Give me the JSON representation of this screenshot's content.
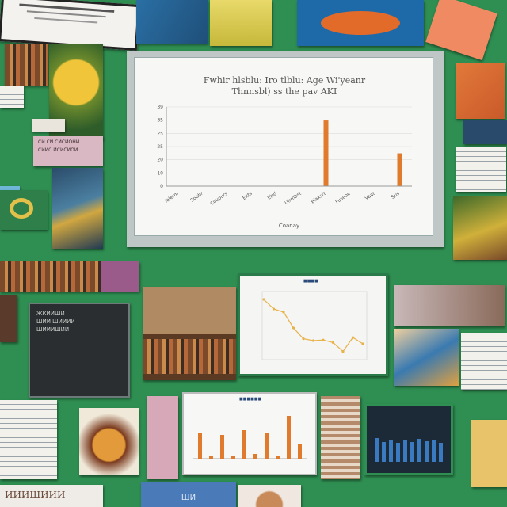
{
  "colors": {
    "background": "#2f8f52",
    "bar": "#e07a2c",
    "board_frame": "#bfc7c6",
    "screen": "#f7f7f5"
  },
  "main_chart": {
    "title_line1": "Fwhir hlsblu: Iro tlblu: Age Wi'yeanr",
    "title_line2": "Thnnsbl) ss the pav AKI",
    "xlabel": "Coanay",
    "y_ticks": [
      "39",
      "35",
      "25",
      "25",
      "20",
      "10",
      "0"
    ],
    "categories": [
      "Iolerm",
      "Soubr",
      "Coupurs",
      "Exts",
      "Elsd",
      "Uirmbst",
      "Blaxsrt",
      "Fuseoe",
      "Vaat",
      "Sris"
    ]
  },
  "chart_data": {
    "type": "bar",
    "categories": [
      "Iolerm",
      "Soubr",
      "Coupurs",
      "Exts",
      "Elsd",
      "Uirmbst",
      "Blaxsrt",
      "Fuseoe",
      "Vaat",
      "Sris"
    ],
    "values": [
      0,
      0,
      0,
      0,
      0,
      0,
      34,
      0,
      0,
      17
    ],
    "ylim": [
      0,
      41
    ],
    "title": "Fwhir hlsblu: Iro tlblu: Age Wi'yeanr Thnnsbl) ss the pav AKI",
    "xlabel": "Coanay",
    "ylabel": ""
  },
  "left_note": {
    "lines": [
      "СИ СИ СИСИОНИ",
      "СИИС ИСИСИОИ"
    ]
  },
  "dark_screen": {
    "lines": [
      "ЖКИИШИ",
      "ШИИ ШИИИИ",
      "ШИИИШИИ"
    ]
  },
  "line_chart": {
    "header": "■■■■",
    "points": [
      [
        0,
        0.1
      ],
      [
        1,
        0.25
      ],
      [
        2,
        0.3
      ],
      [
        3,
        0.55
      ],
      [
        4,
        0.72
      ],
      [
        5,
        0.75
      ],
      [
        6,
        0.74
      ],
      [
        7,
        0.78
      ],
      [
        8,
        0.92
      ],
      [
        9,
        0.7
      ],
      [
        10,
        0.8
      ]
    ]
  },
  "small_bars": {
    "header": "■■■■■■",
    "values": [
      0.55,
      0.05,
      0.5,
      0.05,
      0.6,
      0.1,
      0.55,
      0.05,
      0.9,
      0.3
    ]
  },
  "bottom_banner": {
    "text": "ИИИШИИИ"
  },
  "bottom_tag": {
    "text": "ШИ"
  }
}
